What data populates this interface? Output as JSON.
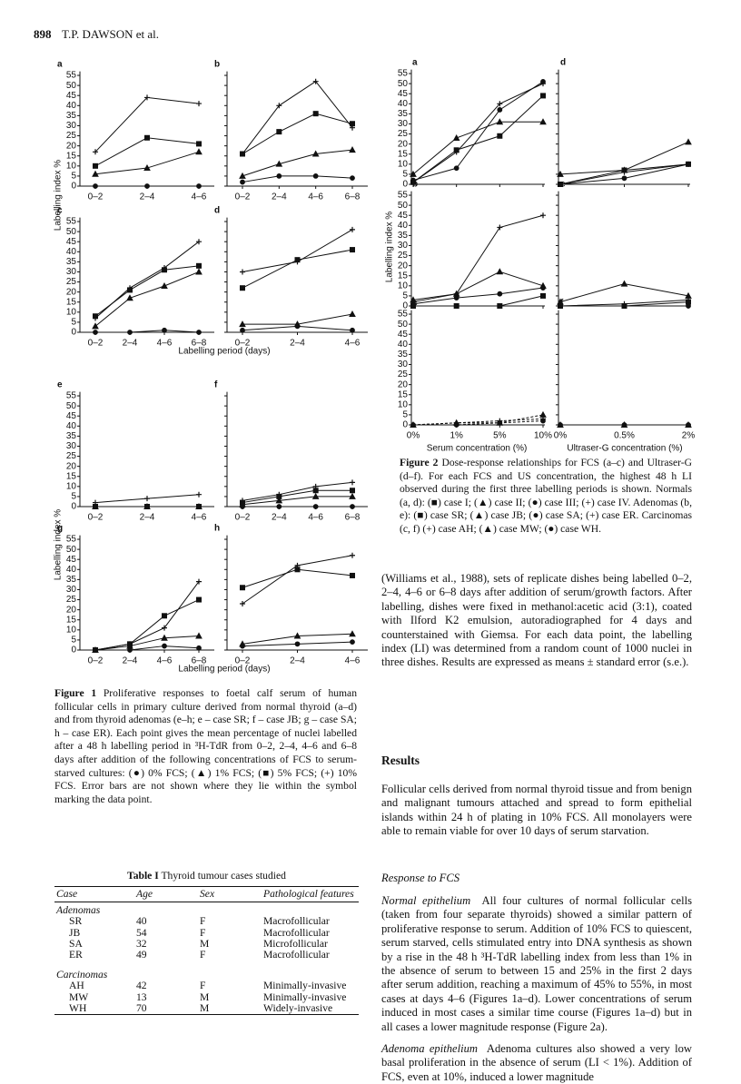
{
  "header": {
    "page": "898",
    "author": "T.P. DAWSON et al."
  },
  "chart_data": [
    {
      "type": "line",
      "ylim": [
        0,
        57
      ],
      "yticks": [
        0,
        5,
        10,
        15,
        20,
        25,
        30,
        35,
        40,
        45,
        50,
        55
      ],
      "ylabel": "Labelling index %",
      "xlabel": "Labelling period (days)",
      "categories": [
        "0–2",
        "2–4",
        "4–6",
        "6–8"
      ],
      "panels": [
        {
          "label": "a",
          "series": [
            {
              "marker": "plus",
              "values": [
                17,
                44,
                41
              ]
            },
            {
              "marker": "square",
              "values": [
                10,
                24,
                21
              ]
            },
            {
              "marker": "triangle",
              "values": [
                6,
                9,
                17
              ]
            },
            {
              "marker": "circle",
              "values": [
                0,
                0,
                0
              ]
            }
          ]
        },
        {
          "label": "b",
          "series": [
            {
              "marker": "plus",
              "values": [
                16,
                40,
                52,
                29
              ]
            },
            {
              "marker": "square",
              "values": [
                16,
                27,
                36,
                31
              ]
            },
            {
              "marker": "triangle",
              "values": [
                5,
                11,
                16,
                18
              ]
            },
            {
              "marker": "circle",
              "values": [
                2,
                5,
                5,
                4
              ]
            }
          ]
        },
        {
          "label": "c",
          "series": [
            {
              "marker": "plus",
              "values": [
                7,
                22,
                32,
                45
              ]
            },
            {
              "marker": "square",
              "values": [
                8,
                21,
                31,
                33
              ]
            },
            {
              "marker": "triangle",
              "values": [
                3,
                17,
                23,
                30
              ]
            },
            {
              "marker": "circle",
              "values": [
                0,
                0,
                1,
                0
              ]
            }
          ]
        },
        {
          "label": "d",
          "series": [
            {
              "marker": "plus",
              "values": [
                30,
                35,
                51
              ]
            },
            {
              "marker": "square",
              "values": [
                22,
                36,
                41
              ]
            },
            {
              "marker": "triangle",
              "values": [
                4,
                4,
                9
              ]
            },
            {
              "marker": "circle",
              "values": [
                1,
                3,
                1
              ]
            }
          ]
        },
        {
          "label": "e",
          "series": [
            {
              "marker": "plus",
              "values": [
                2,
                4,
                6
              ]
            },
            {
              "marker": "square",
              "values": [
                0,
                0,
                0
              ]
            },
            {
              "marker": "triangle",
              "values": [
                0,
                0,
                0
              ]
            },
            {
              "marker": "circle",
              "values": [
                0,
                0,
                0
              ]
            }
          ]
        },
        {
          "label": "f",
          "series": [
            {
              "marker": "plus",
              "values": [
                3,
                6,
                10,
                12
              ]
            },
            {
              "marker": "square",
              "values": [
                2,
                5,
                8,
                8
              ]
            },
            {
              "marker": "triangle",
              "values": [
                1,
                3,
                5,
                5
              ]
            },
            {
              "marker": "circle",
              "values": [
                0,
                0,
                0,
                0
              ]
            }
          ]
        },
        {
          "label": "g",
          "series": [
            {
              "marker": "plus",
              "values": [
                0,
                3,
                11,
                34
              ]
            },
            {
              "marker": "square",
              "values": [
                0,
                3,
                17,
                25
              ]
            },
            {
              "marker": "triangle",
              "values": [
                0,
                2,
                6,
                7
              ]
            },
            {
              "marker": "circle",
              "values": [
                0,
                0,
                2,
                1
              ]
            }
          ]
        },
        {
          "label": "h",
          "series": [
            {
              "marker": "plus",
              "values": [
                23,
                42,
                47
              ]
            },
            {
              "marker": "square",
              "values": [
                31,
                40,
                37
              ]
            },
            {
              "marker": "triangle",
              "values": [
                3,
                7,
                8
              ]
            },
            {
              "marker": "circle",
              "values": [
                2,
                3,
                4
              ]
            }
          ]
        }
      ]
    },
    {
      "type": "line",
      "ylim": [
        0,
        57
      ],
      "yticks": [
        0,
        5,
        10,
        15,
        20,
        25,
        30,
        35,
        40,
        45,
        50,
        55
      ],
      "ylabel": "Labelling index %",
      "xlabels": [
        "Serum concentration (%)",
        "Ultraser-G concentration (%)"
      ],
      "categories_serum": [
        "0%",
        "1%",
        "5%",
        "10%"
      ],
      "categories_us": [
        "0%",
        "0.5%",
        "2%"
      ],
      "panels": [
        {
          "label": "a",
          "series": [
            {
              "marker": "square",
              "values": [
                1,
                17,
                24,
                44
              ]
            },
            {
              "marker": "triangle",
              "values": [
                5,
                23,
                31,
                31
              ]
            },
            {
              "marker": "circle",
              "values": [
                2,
                8,
                37,
                51
              ]
            },
            {
              "marker": "plus",
              "values": [
                1,
                16,
                40,
                50
              ]
            }
          ]
        },
        {
          "label": "d",
          "series": [
            {
              "marker": "square",
              "values": [
                0,
                7,
                10
              ]
            },
            {
              "marker": "triangle",
              "values": [
                5,
                7,
                21
              ]
            },
            {
              "marker": "circle",
              "values": [
                0,
                3,
                10
              ]
            },
            {
              "marker": "plus",
              "values": [
                0,
                6,
                10
              ]
            }
          ]
        },
        {
          "label": "b",
          "series": [
            {
              "marker": "square",
              "values": [
                0,
                0,
                0,
                5
              ]
            },
            {
              "marker": "triangle",
              "values": [
                3,
                6,
                17,
                10
              ]
            },
            {
              "marker": "circle",
              "values": [
                1,
                4,
                6,
                9
              ]
            },
            {
              "marker": "plus",
              "values": [
                2,
                6,
                39,
                45
              ]
            }
          ]
        },
        {
          "label": "e",
          "series": [
            {
              "marker": "square",
              "values": [
                0,
                0,
                2
              ]
            },
            {
              "marker": "triangle",
              "values": [
                2,
                11,
                5
              ]
            },
            {
              "marker": "circle",
              "values": [
                0,
                0,
                0
              ]
            },
            {
              "marker": "plus",
              "values": [
                0,
                1,
                3
              ]
            }
          ]
        },
        {
          "label": "c",
          "dashed": true,
          "series": [
            {
              "marker": "plus",
              "values": [
                0,
                1,
                2,
                3
              ]
            },
            {
              "marker": "triangle",
              "values": [
                0,
                1,
                1,
                5
              ]
            },
            {
              "marker": "circle",
              "values": [
                0,
                0,
                1,
                2
              ]
            }
          ]
        },
        {
          "label": "f",
          "series": [
            {
              "marker": "plus",
              "values": [
                0,
                0,
                0
              ]
            },
            {
              "marker": "triangle",
              "values": [
                0,
                0,
                0
              ]
            },
            {
              "marker": "circle",
              "values": [
                0,
                0,
                0
              ]
            }
          ]
        }
      ]
    }
  ],
  "figure1_caption": {
    "label": "Figure 1",
    "text": "Proliferative responses to foetal calf serum of human follicular cells in primary culture derived from normal thyroid (a–d) and from thyroid adenomas (e–h; e – case SR; f – case JB; g – case SA; h – case ER). Each point gives the mean percentage of nuclei labelled after a 48 h labelling period in ³H-TdR from 0–2, 2–4, 4–6 and 6–8 days after addition of the following concentrations of FCS to serum-starved cultures: (●) 0% FCS; (▲) 1% FCS; (■) 5% FCS; (+) 10% FCS. Error bars are not shown where they lie within the symbol marking the data point."
  },
  "figure2_caption": {
    "label": "Figure 2",
    "text": "Dose-response relationships for FCS (a–c) and Ultraser-G (d–f). For each FCS and US concentration, the highest 48 h LI observed during the first three labelling periods is shown. Normals (a, d): (■) case I; (▲) case II; (●) case III; (+) case IV. Adenomas (b, e): (■) case SR; (▲) case JB; (●) case SA; (+) case ER. Carcinomas (c, f) (+) case AH; (▲) case MW; (●) case WH."
  },
  "table": {
    "label": "Table I",
    "title": "Thyroid tumour cases studied",
    "header": [
      "Case",
      "Age",
      "Sex",
      "Pathological features"
    ],
    "groups": [
      {
        "name": "Adenomas",
        "rows": [
          [
            "SR",
            40,
            "F",
            "Macrofollicular"
          ],
          [
            "JB",
            54,
            "F",
            "Macrofollicular"
          ],
          [
            "SA",
            32,
            "M",
            "Microfollicular"
          ],
          [
            "ER",
            49,
            "F",
            "Macrofollicular"
          ]
        ]
      },
      {
        "name": "Carcinomas",
        "rows": [
          [
            "AH",
            42,
            "F",
            "Minimally-invasive"
          ],
          [
            "MW",
            13,
            "M",
            "Minimally-invasive"
          ],
          [
            "WH",
            70,
            "M",
            "Widely-invasive"
          ]
        ]
      }
    ]
  },
  "body": {
    "methods_end": "(Williams et al., 1988), sets of replicate dishes being labelled 0–2, 2–4, 4–6 or 6–8 days after addition of serum/growth factors. After labelling, dishes were fixed in methanol:acetic acid (3:1), coated with Ilford K2 emulsion, autoradiographed for 4 days and counterstained with Giemsa. For each data point, the labelling index (LI) was determined from a random count of 1000 nuclei in three dishes. Results are expressed as means ± standard error (s.e.).",
    "results_heading": "Results",
    "results_text": "Follicular cells derived from normal thyroid tissue and from benign and malignant tumours attached and spread to form epithelial islands within 24 h of plating in 10% FCS. All monolayers were able to remain viable for over 10 days of serum starvation.",
    "subheading": "Response to FCS",
    "normal": {
      "lead": "Normal epithelium",
      "text": "All four cultures of normal follicular cells (taken from four separate thyroids) showed a similar pattern of proliferative response to serum. Addition of 10% FCS to quiescent, serum starved, cells stimulated entry into DNA synthesis as shown by a rise in the 48 h ³H-TdR labelling index from less than 1% in the absence of serum to between 15 and 25% in the first 2 days after serum addition, reaching a maximum of 45% to 55%, in most cases at days 4–6 (Figures 1a–d). Lower concentrations of serum induced in most cases a similar time course (Figures 1a–d) but in all cases a lower magnitude response (Figure 2a)."
    },
    "adenoma": {
      "lead": "Adenoma epithelium",
      "text": "Adenoma cultures also showed a very low basal proliferation in the absence of serum (LI < 1%). Addition of FCS, even at 10%, induced a lower magnitude"
    }
  }
}
